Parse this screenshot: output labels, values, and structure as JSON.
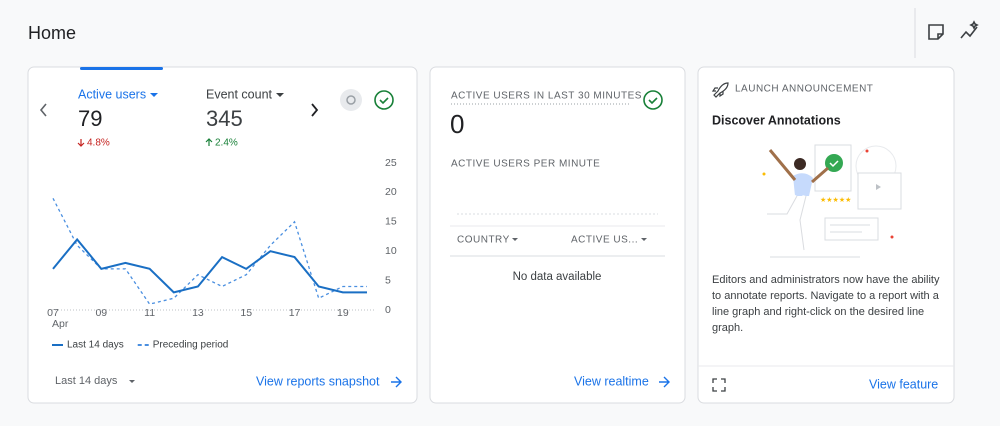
{
  "header": {
    "title": "Home"
  },
  "cards": [
    {
      "metrics": [
        {
          "name": "Active users",
          "value": "79",
          "change": "4.8%"
        },
        {
          "name": "Event count",
          "value": "345",
          "change": "2.4%"
        }
      ],
      "range_selector": "Last 14 days",
      "link": "View reports snapshot"
    },
    {
      "title": "ACTIVE USERS IN LAST 30 MINUTES",
      "value": "0",
      "subtitle": "ACTIVE USERS PER MINUTE",
      "columns": [
        "COUNTRY",
        "ACTIVE US..."
      ],
      "empty_message": "No data available",
      "link": "View realtime"
    },
    {
      "kicker": "LAUNCH ANNOUNCEMENT",
      "title": "Discover Annotations",
      "body_lines": [
        "Editors and administrators now have the ability",
        "to annotate reports. Navigate to a report with a",
        "line graph and right-click on the desired line",
        "graph."
      ],
      "link": "View feature"
    }
  ],
  "chart_data": {
    "type": "line",
    "categories": [
      "07",
      null,
      "09",
      null,
      "11",
      null,
      "13",
      null,
      "15",
      null,
      "17",
      null,
      "19",
      null
    ],
    "first_month": "Apr",
    "series": [
      {
        "name": "Last 14 days",
        "color": "#1a6fc4",
        "dashed": false,
        "values": [
          7,
          12,
          7,
          8,
          7,
          3,
          4,
          9,
          7,
          10,
          9,
          4,
          3,
          3
        ]
      },
      {
        "name": "Preceding period",
        "color": "#4a8fe0",
        "dashed": true,
        "values": [
          19,
          11,
          7,
          7,
          1,
          2,
          6,
          4,
          6,
          11,
          15,
          2,
          4,
          4
        ]
      }
    ],
    "ylim": [
      0,
      25
    ],
    "yticks": [
      0,
      5,
      10,
      15,
      20,
      25
    ],
    "grid": false
  }
}
